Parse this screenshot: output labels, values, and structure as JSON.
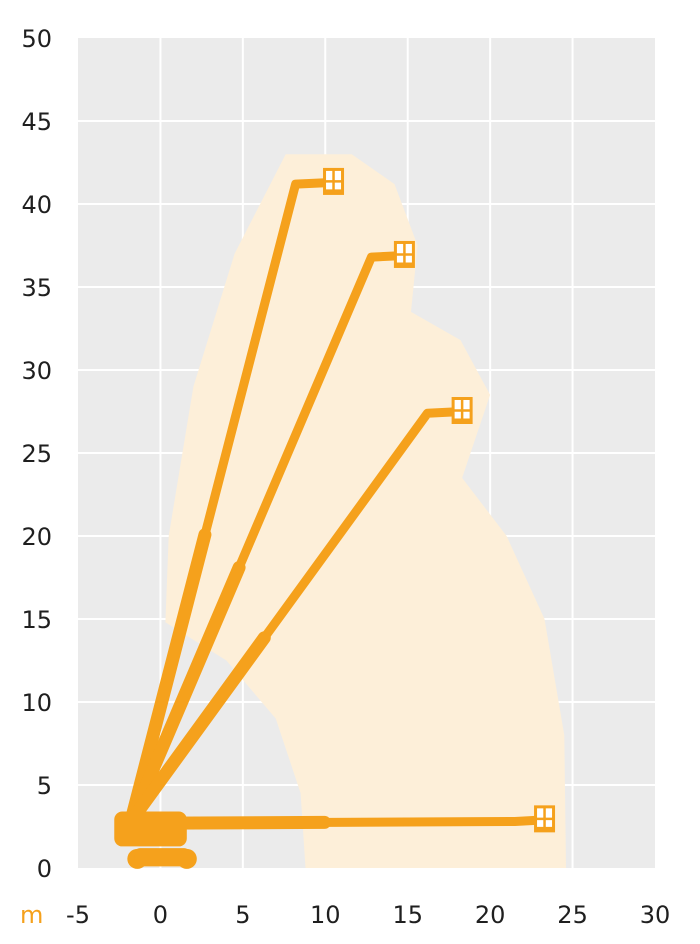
{
  "chart_data": {
    "type": "line",
    "title": "",
    "xlabel": "",
    "ylabel": "",
    "x_unit_label": "m",
    "xlim": [
      -5,
      30
    ],
    "ylim": [
      0,
      50
    ],
    "x_ticks": [
      "-5",
      "0",
      "5",
      "10",
      "15",
      "20",
      "25",
      "30"
    ],
    "y_ticks": [
      "0",
      "5",
      "10",
      "15",
      "20",
      "25",
      "30",
      "35",
      "40",
      "45",
      "50"
    ],
    "grid": true,
    "legend": "none",
    "series": [
      {
        "points": [
          [
            -1.8,
            2.8
          ],
          [
            8.2,
            41.2
          ],
          [
            10.5,
            41.3
          ]
        ]
      },
      {
        "points": [
          [
            -1.8,
            2.8
          ],
          [
            12.8,
            36.8
          ],
          [
            14.8,
            36.9
          ]
        ]
      },
      {
        "points": [
          [
            -1.8,
            2.8
          ],
          [
            16.2,
            27.4
          ],
          [
            18.3,
            27.5
          ]
        ]
      },
      {
        "points": [
          [
            0.5,
            2.7
          ],
          [
            21.5,
            2.8
          ],
          [
            23.3,
            2.9
          ]
        ]
      }
    ],
    "working_envelope": [
      [
        8.8,
        0
      ],
      [
        8.5,
        4.5
      ],
      [
        7.0,
        9.0
      ],
      [
        4.0,
        12.5
      ],
      [
        0.3,
        14.8
      ],
      [
        0.5,
        20.0
      ],
      [
        2.0,
        29.0
      ],
      [
        4.5,
        37.0
      ],
      [
        7.6,
        43.0
      ],
      [
        11.6,
        43.0
      ],
      [
        14.2,
        41.2
      ],
      [
        15.6,
        37.5
      ],
      [
        15.2,
        33.5
      ],
      [
        18.2,
        31.8
      ],
      [
        20.0,
        28.5
      ],
      [
        18.3,
        23.5
      ],
      [
        21.0,
        20.0
      ],
      [
        23.3,
        15.0
      ],
      [
        24.5,
        8.0
      ],
      [
        24.6,
        0
      ]
    ],
    "colors": {
      "background": "#ebebeb",
      "grid": "#ffffff",
      "boom": "#f5a11c",
      "envelope": "#fdefd9",
      "unit_label": "#f5a11c",
      "tick_text": "#1f1f1f"
    }
  }
}
